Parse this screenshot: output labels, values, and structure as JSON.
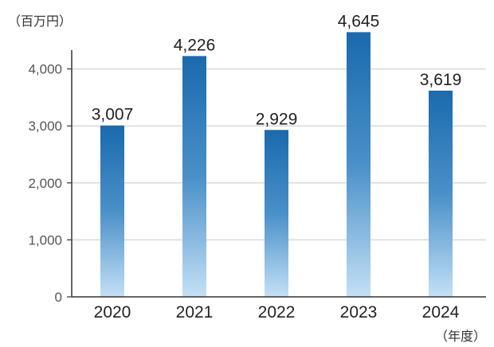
{
  "chart_data": {
    "type": "bar",
    "categories": [
      "2020",
      "2021",
      "2022",
      "2023",
      "2024"
    ],
    "values": [
      3007,
      4226,
      2929,
      4645,
      3619
    ],
    "data_labels": [
      "3,007",
      "4,226",
      "2,929",
      "4,645",
      "3,619"
    ],
    "ylabel": "（百万円）",
    "xlabel": "（年度）",
    "ylim": [
      0,
      4000
    ],
    "yticks": [
      0,
      1000,
      2000,
      3000,
      4000
    ],
    "ytick_labels": [
      "0",
      "1,000",
      "2,000",
      "3,000",
      "4,000"
    ],
    "grid": true,
    "colors": {
      "bar_top": "#1a6aae",
      "bar_mid": "#4a90c8",
      "bar_bottom": "#c4e0f6",
      "grid": "#d9d9d9",
      "axis": "#333333"
    }
  }
}
